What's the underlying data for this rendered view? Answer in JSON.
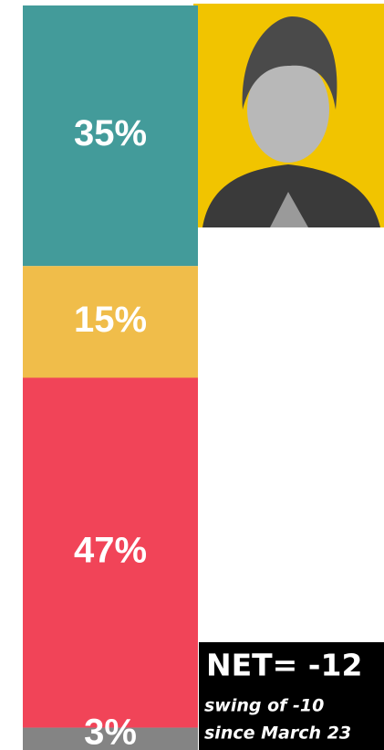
{
  "chart_data": {
    "type": "bar",
    "values": [
      35,
      15,
      47,
      3
    ],
    "value_labels": [
      "35%",
      "15%",
      "47%",
      "3%"
    ],
    "colors": [
      "#439b9a",
      "#f0bd4a",
      "#f14458",
      "#848484"
    ],
    "annotations": [
      "NET= -12",
      "swing of -10",
      "since March 23"
    ]
  }
}
